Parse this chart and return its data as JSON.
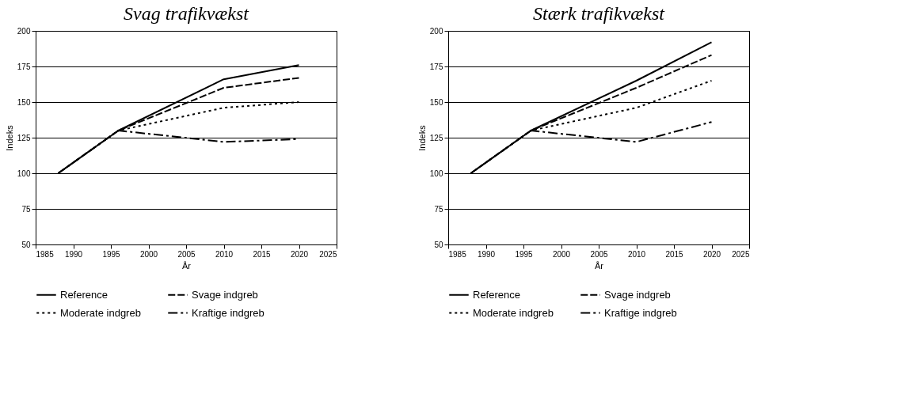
{
  "chart_data": [
    {
      "type": "line",
      "title": "Svag trafikvækst",
      "xlabel": "År",
      "ylabel": "Indeks",
      "x": [
        1988,
        1996,
        2010,
        2020
      ],
      "xlim": [
        1985,
        2025
      ],
      "xticks": [
        1985,
        1990,
        1995,
        2000,
        2005,
        2010,
        2015,
        2020,
        2025
      ],
      "ylim": [
        50,
        200
      ],
      "yticks": [
        50,
        75,
        100,
        125,
        150,
        175,
        200
      ],
      "grid": "y",
      "legend": "bottom",
      "marker": "none",
      "series": [
        {
          "name": "Reference",
          "color": "#000000",
          "line_style": "solid",
          "values": [
            100,
            130,
            166,
            176
          ]
        },
        {
          "name": "Svage indgreb",
          "color": "#000000",
          "line_style": "dashed",
          "values": [
            100,
            130,
            160,
            167
          ]
        },
        {
          "name": "Moderate indgreb",
          "color": "#000000",
          "line_style": "dotted",
          "values": [
            100,
            130,
            146,
            150
          ]
        },
        {
          "name": "Kraftige indgreb",
          "color": "#000000",
          "line_style": "dashdot",
          "values": [
            100,
            130,
            122,
            124
          ]
        }
      ]
    },
    {
      "type": "line",
      "title": "Stærk trafikvækst",
      "xlabel": "År",
      "ylabel": "Indeks",
      "x": [
        1988,
        1996,
        2010,
        2020
      ],
      "xlim": [
        1985,
        2025
      ],
      "xticks": [
        1985,
        1990,
        1995,
        2000,
        2005,
        2010,
        2015,
        2020,
        2025
      ],
      "ylim": [
        50,
        200
      ],
      "yticks": [
        50,
        75,
        100,
        125,
        150,
        175,
        200
      ],
      "grid": "y",
      "legend": "bottom",
      "marker": "none",
      "series": [
        {
          "name": "Reference",
          "color": "#000000",
          "line_style": "solid",
          "values": [
            100,
            130,
            165,
            192
          ]
        },
        {
          "name": "Svage indgreb",
          "color": "#000000",
          "line_style": "dashed",
          "values": [
            100,
            130,
            160,
            183
          ]
        },
        {
          "name": "Moderate indgreb",
          "color": "#000000",
          "line_style": "dotted",
          "values": [
            100,
            130,
            146,
            165
          ]
        },
        {
          "name": "Kraftige indgreb",
          "color": "#000000",
          "line_style": "dashdot",
          "values": [
            100,
            130,
            122,
            136
          ]
        }
      ]
    }
  ]
}
